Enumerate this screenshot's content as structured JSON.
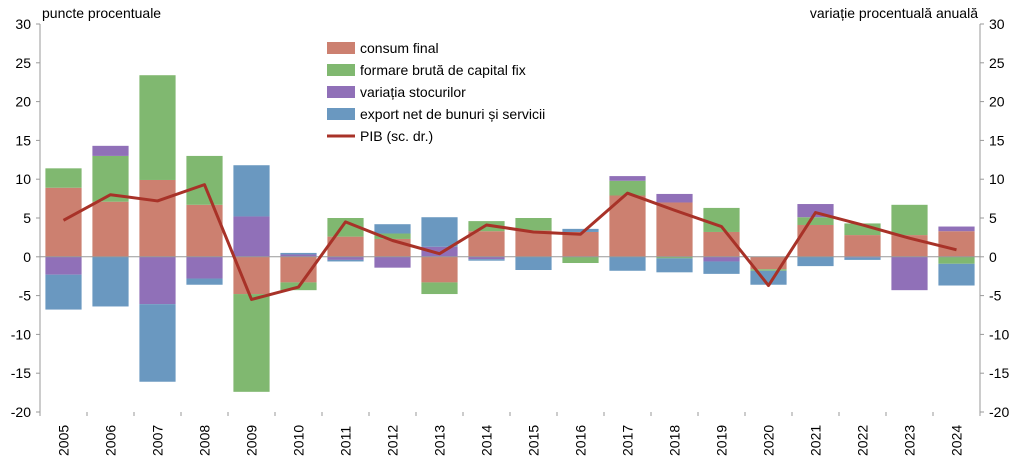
{
  "chart_data": {
    "type": "bar",
    "title": "",
    "ylabel_left": "puncte procentuale",
    "ylabel_right": "variație procentuală anuală",
    "ylim": [
      -20,
      30
    ],
    "yticks": [
      30,
      25,
      20,
      15,
      10,
      5,
      0,
      -5,
      -10,
      -15,
      -20
    ],
    "grid": false,
    "legend_position": "top-center",
    "categories": [
      "2005",
      "2006",
      "2007",
      "2008",
      "2009",
      "2010",
      "2011",
      "2012",
      "2013",
      "2014",
      "2015",
      "2016",
      "2017",
      "2018",
      "2019",
      "2020",
      "2021",
      "2022",
      "2023",
      "2024"
    ],
    "series": [
      {
        "name": "consum final",
        "kind": "bar",
        "color": "#cc8070",
        "values": [
          8.9,
          7.1,
          9.9,
          6.7,
          -4.8,
          -3.3,
          2.6,
          2.3,
          -3.3,
          3.3,
          3.4,
          3.2,
          7.9,
          7.0,
          3.2,
          -1.6,
          4.1,
          2.8,
          2.8,
          3.3
        ]
      },
      {
        "name": "formare brută de capital fix",
        "kind": "bar",
        "color": "#80b870",
        "values": [
          2.5,
          5.9,
          13.5,
          6.3,
          -12.6,
          -1.0,
          2.4,
          0.7,
          -1.5,
          1.3,
          1.6,
          -0.8,
          1.9,
          -0.2,
          3.1,
          -0.2,
          1.0,
          1.5,
          3.9,
          -0.9
        ]
      },
      {
        "name": "variația stocurilor",
        "kind": "bar",
        "color": "#9070b8",
        "values": [
          -2.3,
          1.3,
          -6.1,
          -2.8,
          5.2,
          0.3,
          -0.4,
          -1.4,
          1.3,
          -0.3,
          0.0,
          0.0,
          0.6,
          1.1,
          -0.6,
          0.0,
          1.7,
          -0.1,
          -4.3,
          0.6
        ]
      },
      {
        "name": "export net de bunuri și servicii",
        "kind": "bar",
        "color": "#6a98c0",
        "values": [
          -4.5,
          -6.4,
          -10.0,
          -0.8,
          6.6,
          0.2,
          -0.2,
          1.2,
          3.8,
          -0.2,
          -1.7,
          0.4,
          -1.8,
          -1.8,
          -1.6,
          -1.8,
          -1.2,
          -0.3,
          0.0,
          -2.8
        ]
      },
      {
        "name": "PIB (sc. dr.)",
        "kind": "line",
        "color": "#a83228",
        "values": [
          4.7,
          8.0,
          7.2,
          9.3,
          -5.5,
          -3.9,
          4.5,
          2.1,
          0.4,
          4.1,
          3.2,
          2.9,
          8.2,
          6.0,
          3.9,
          -3.7,
          5.7,
          4.1,
          2.4,
          0.9
        ]
      }
    ]
  }
}
